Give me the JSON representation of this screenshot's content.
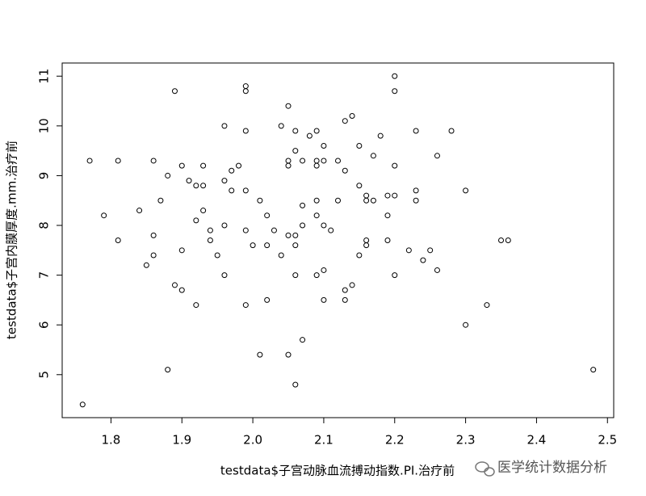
{
  "chart_data": {
    "type": "scatter",
    "x_label": "testdata$子宫动脉血流搏动指数.PI.治疗前",
    "y_label": "testdata$子宫内膜厚度.mm.治疗前",
    "watermark": "医学统计数据分析",
    "xlim": [
      1.7312,
      2.5088
    ],
    "ylim": [
      4.136,
      11.264
    ],
    "xticks": [
      1.8,
      1.9,
      {
        "value": 2,
        "label": "2.0"
      },
      2.1,
      2.2,
      2.3,
      2.4,
      2.5
    ],
    "yticks": [
      5,
      6,
      7,
      8,
      9,
      10,
      11
    ],
    "color": "#000000",
    "x": [
      1.76,
      1.77,
      1.79,
      1.81,
      1.81,
      1.84,
      1.85,
      1.86,
      1.86,
      1.86,
      1.87,
      1.88,
      1.88,
      1.89,
      1.89,
      1.9,
      1.9,
      1.9,
      1.91,
      1.92,
      1.92,
      1.92,
      1.93,
      1.93,
      1.93,
      1.94,
      1.94,
      1.95,
      1.96,
      1.96,
      1.96,
      1.96,
      1.97,
      1.97,
      1.98,
      1.99,
      1.99,
      1.99,
      1.99,
      1.99,
      1.99,
      2.0,
      2.01,
      2.01,
      2.02,
      2.02,
      2.02,
      2.03,
      2.04,
      2.04,
      2.05,
      2.05,
      2.05,
      2.05,
      2.05,
      2.06,
      2.06,
      2.06,
      2.06,
      2.06,
      2.06,
      2.07,
      2.07,
      2.07,
      2.07,
      2.08,
      2.09,
      2.09,
      2.09,
      2.09,
      2.09,
      2.09,
      2.1,
      2.1,
      2.1,
      2.1,
      2.1,
      2.11,
      2.12,
      2.12,
      2.13,
      2.13,
      2.13,
      2.13,
      2.14,
      2.14,
      2.15,
      2.15,
      2.15,
      2.16,
      2.16,
      2.16,
      2.16,
      2.17,
      2.17,
      2.18,
      2.19,
      2.19,
      2.19,
      2.2,
      2.2,
      2.2,
      2.2,
      2.2,
      2.22,
      2.23,
      2.23,
      2.23,
      2.24,
      2.25,
      2.26,
      2.26,
      2.28,
      2.3,
      2.3,
      2.33,
      2.35,
      2.36,
      2.48
    ],
    "values": [
      4.4,
      9.3,
      8.2,
      9.3,
      7.7,
      8.3,
      7.2,
      9.3,
      7.8,
      7.4,
      8.5,
      9.0,
      5.1,
      10.7,
      6.8,
      9.2,
      7.5,
      6.7,
      8.9,
      8.8,
      8.1,
      6.4,
      9.2,
      8.8,
      8.3,
      7.9,
      7.7,
      7.4,
      10.0,
      8.9,
      8.0,
      7.0,
      9.1,
      8.7,
      9.2,
      10.8,
      10.7,
      9.9,
      8.7,
      7.9,
      6.4,
      7.6,
      8.5,
      5.4,
      8.2,
      7.6,
      6.5,
      7.9,
      10.0,
      7.4,
      10.4,
      9.3,
      9.2,
      7.8,
      5.4,
      9.9,
      9.5,
      7.8,
      7.6,
      7.0,
      4.8,
      9.3,
      8.4,
      8.0,
      5.7,
      9.8,
      9.9,
      9.3,
      9.2,
      8.5,
      8.2,
      7.0,
      9.6,
      9.3,
      8.0,
      7.1,
      6.5,
      7.9,
      9.3,
      8.5,
      10.1,
      9.1,
      6.7,
      6.5,
      10.2,
      6.8,
      9.6,
      8.8,
      7.4,
      8.6,
      8.5,
      7.7,
      7.6,
      9.4,
      8.5,
      9.8,
      8.6,
      8.2,
      7.7,
      11.0,
      10.7,
      9.2,
      8.6,
      7.0,
      7.5,
      9.9,
      8.7,
      8.5,
      7.3,
      7.5,
      9.4,
      7.1,
      9.9,
      8.7,
      6.0,
      6.4,
      7.7,
      7.7,
      5.1
    ]
  }
}
